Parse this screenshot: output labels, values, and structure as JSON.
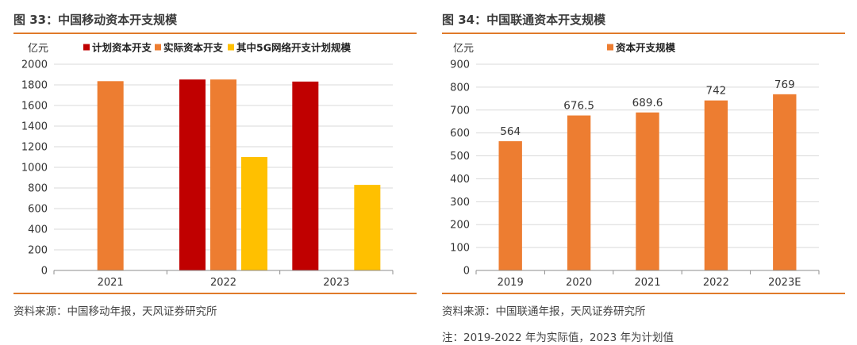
{
  "figures": [
    {
      "id": "fig33",
      "title": "图 33：中国移动资本开支规模",
      "source": "资料来源：中国移动年报，天风证券研究所",
      "chart_data": {
        "type": "bar",
        "title": "中国移动资本开支规模",
        "ylabel": "亿元",
        "xlabel": "",
        "ylim": [
          0,
          2000
        ],
        "yticks": [
          0,
          200,
          400,
          600,
          800,
          1000,
          1200,
          1400,
          1600,
          1800,
          2000
        ],
        "categories": [
          "2021",
          "2022",
          "2023"
        ],
        "series": [
          {
            "name": "计划资本开支",
            "color": "#c00000",
            "values": [
              null,
              1852,
              1832
            ]
          },
          {
            "name": "实际资本开支",
            "color": "#ed7d31",
            "values": [
              1836,
              1852,
              null
            ]
          },
          {
            "name": "其中5G网络开支计划规模",
            "color": "#ffc000",
            "values": [
              null,
              1100,
              830
            ]
          }
        ],
        "legend_position": "top",
        "grid": true
      }
    },
    {
      "id": "fig34",
      "title": "图 34：中国联通资本开支规模",
      "source": "资料来源：中国联通年报，天风证券研究所",
      "note": "注：2019-2022 年为实际值，2023 年为计划值",
      "chart_data": {
        "type": "bar",
        "title": "中国联通资本开支规模",
        "ylabel": "亿元",
        "xlabel": "",
        "ylim": [
          0,
          900
        ],
        "yticks": [
          0,
          100,
          200,
          300,
          400,
          500,
          600,
          700,
          800,
          900
        ],
        "categories": [
          "2019",
          "2020",
          "2021",
          "2022",
          "2023E"
        ],
        "series": [
          {
            "name": "资本开支规模",
            "color": "#ed7d31",
            "values": [
              564,
              676.5,
              689.6,
              742,
              769
            ],
            "labels": [
              "564",
              "676.5",
              "689.6",
              "742",
              "769"
            ]
          }
        ],
        "legend_position": "top",
        "grid": true
      }
    }
  ]
}
